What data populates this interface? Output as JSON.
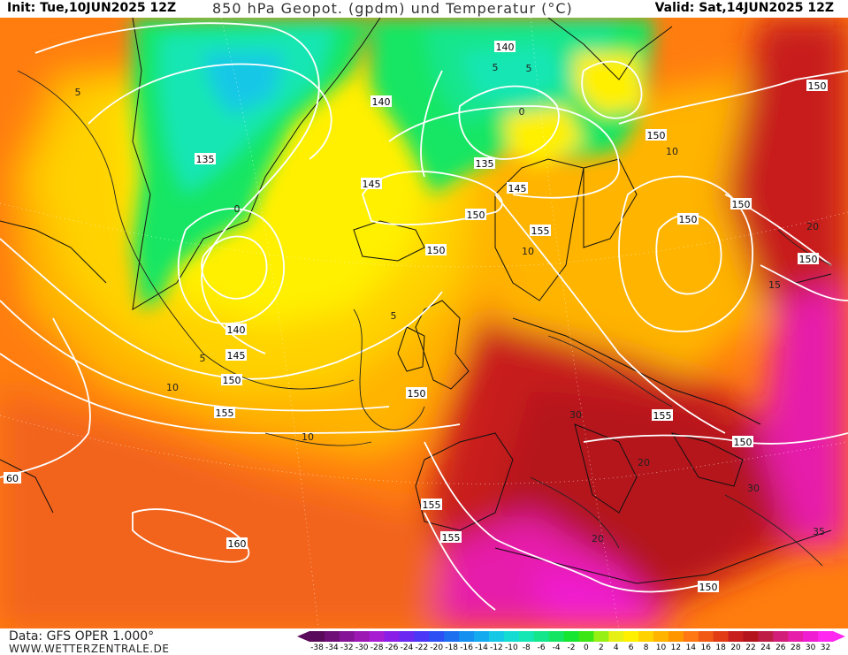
{
  "header": {
    "init": "Init: Tue,10JUN2025 12Z",
    "title": "850 hPa Geopot. (gpdm) und Temperatur (°C)",
    "valid": "Valid: Sat,14JUN2025 12Z"
  },
  "footer": {
    "data_source": "Data: GFS OPER 1.000°",
    "site": "WWW.WETTERZENTRALE.DE"
  },
  "legend": {
    "ticks": [
      "-38",
      "-34",
      "-32",
      "-30",
      "-28",
      "-26",
      "-24",
      "-22",
      "-20",
      "-18",
      "-16",
      "-14",
      "-12",
      "-10",
      "-8",
      "-6",
      "-4",
      "-2",
      "0",
      "2",
      "4",
      "6",
      "8",
      "10",
      "12",
      "14",
      "16",
      "18",
      "20",
      "22",
      "24",
      "26",
      "28",
      "30",
      "32"
    ],
    "colors": [
      "#5a0a5a",
      "#6e0f78",
      "#861496",
      "#9c19b4",
      "#a71ed2",
      "#8a1ee6",
      "#6a28f0",
      "#4b37f5",
      "#2d50f5",
      "#1e6ef0",
      "#1490f0",
      "#14aaf0",
      "#14c8e6",
      "#14dcd2",
      "#14e6b4",
      "#14e68c",
      "#14e664",
      "#14e632",
      "#3ce614",
      "#96f014",
      "#e6f014",
      "#fff000",
      "#ffd200",
      "#ffb400",
      "#ff9600",
      "#ff7814",
      "#f05a14",
      "#e13c14",
      "#c81e1e",
      "#b4141e",
      "#be1e46",
      "#d21e78",
      "#e61eaa",
      "#f01ed2",
      "#ff28f0"
    ]
  },
  "map": {
    "height_labels": [
      "140",
      "140",
      "150",
      "150",
      "135",
      "145",
      "145",
      "150",
      "155",
      "150",
      "150",
      "135",
      "140",
      "145",
      "150",
      "155",
      "150",
      "155",
      "150",
      "155",
      "150",
      "155",
      "160",
      "150",
      "150",
      "60"
    ],
    "temp_labels": [
      "5",
      "5",
      "5",
      "0",
      "0",
      "5",
      "10",
      "5",
      "10",
      "10",
      "20",
      "10",
      "20",
      "30",
      "30",
      "35",
      "20",
      "15"
    ]
  }
}
